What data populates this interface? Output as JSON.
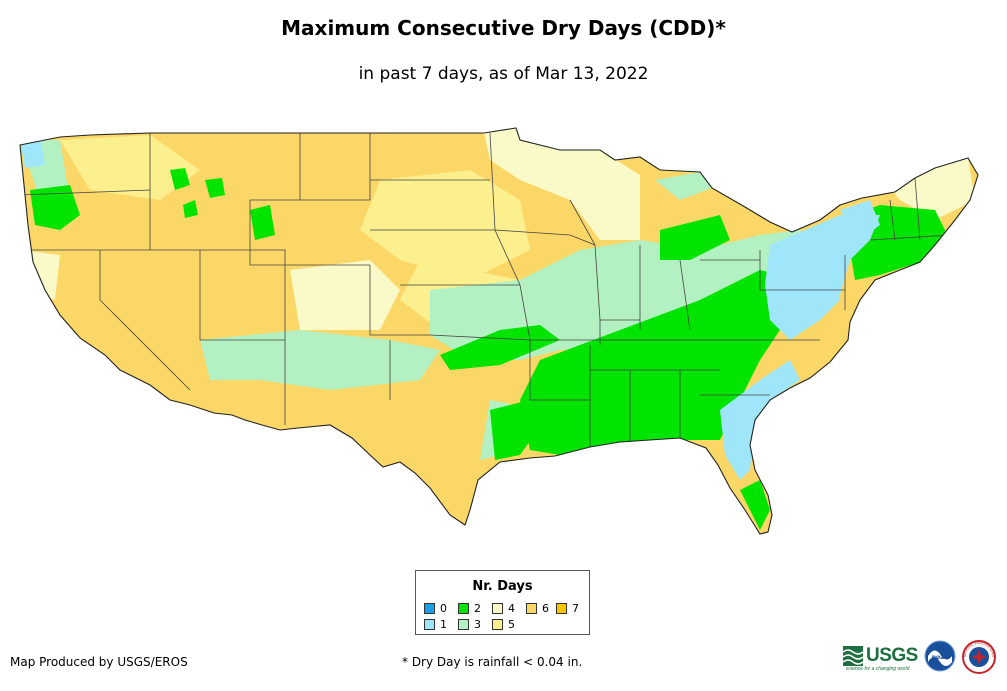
{
  "title": "Maximum Consecutive Dry Days (CDD)*",
  "subtitle": "in past 7 days, as of Mar 13, 2022",
  "legend": {
    "title": "Nr. Days",
    "items": [
      {
        "label": "0",
        "color": "#1a9fe8"
      },
      {
        "label": "1",
        "color": "#a0e6fa"
      },
      {
        "label": "2",
        "color": "#00e400"
      },
      {
        "label": "3",
        "color": "#b3f0c2"
      },
      {
        "label": "4",
        "color": "#fafac8"
      },
      {
        "label": "5",
        "color": "#fbef8e"
      },
      {
        "label": "6",
        "color": "#fbd767"
      },
      {
        "label": "7",
        "color": "#fbc600"
      }
    ]
  },
  "credit": "Map Produced by USGS/EROS",
  "footnote": "* Dry Day is rainfall < 0.04 in.",
  "logos": {
    "usgs_text": "USGS",
    "usgs_tagline": "science for a changing world",
    "noaa_text": "noaa",
    "nws_text": "NATIONAL WEATHER SERVICE"
  }
}
